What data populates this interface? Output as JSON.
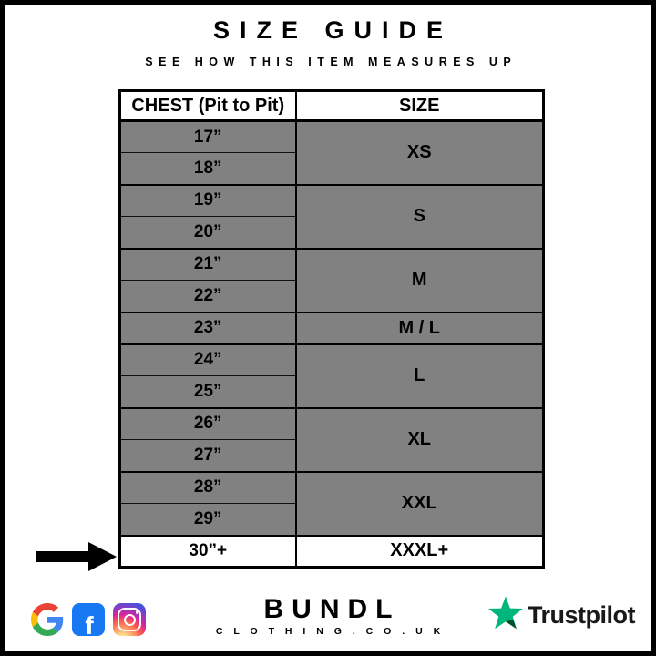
{
  "page": {
    "title": "SIZE GUIDE",
    "subtitle": "SEE HOW THIS ITEM MEASURES UP"
  },
  "table": {
    "headers": [
      "CHEST (Pit to Pit)",
      "SIZE"
    ],
    "groups": [
      {
        "size": "XS",
        "chest": [
          "17”",
          "18”"
        ],
        "highlight": false
      },
      {
        "size": "S",
        "chest": [
          "19”",
          "20”"
        ],
        "highlight": false
      },
      {
        "size": "M",
        "chest": [
          "21”",
          "22”"
        ],
        "highlight": false
      },
      {
        "size": "M / L",
        "chest": [
          "23”"
        ],
        "highlight": false
      },
      {
        "size": "L",
        "chest": [
          "24”",
          "25”"
        ],
        "highlight": false
      },
      {
        "size": "XL",
        "chest": [
          "26”",
          "27”"
        ],
        "highlight": false
      },
      {
        "size": "XXL",
        "chest": [
          "28”",
          "29”"
        ],
        "highlight": false
      },
      {
        "size": "XXXL+",
        "chest": [
          "30”+"
        ],
        "highlight": true
      }
    ],
    "highlight_marker": "arrow-icon"
  },
  "footer": {
    "brand": "BUNDL",
    "brand_sub": "C L O T H I N G . C O . U K",
    "social_icons": [
      "google-icon",
      "facebook-icon",
      "instagram-icon"
    ],
    "facebook_letter": "f",
    "trustpilot_label": "Trustpilot"
  },
  "colors": {
    "text": "#000000",
    "frame": "#000000",
    "row-bg": "#818181",
    "highlight-bg": "#ffffff",
    "facebook-blue": "#1877F2",
    "google-blue": "#4285F4",
    "google-red": "#EA4335",
    "google-yellow": "#FBBC05",
    "google-green": "#34A853",
    "insta-1": "#FDF497",
    "insta-2": "#FD5949",
    "insta-3": "#D6249F",
    "insta-4": "#285AEB",
    "trustpilot-green": "#00B67A",
    "trustpilot-dark": "#005128",
    "trustpilot-text": "#191919"
  }
}
